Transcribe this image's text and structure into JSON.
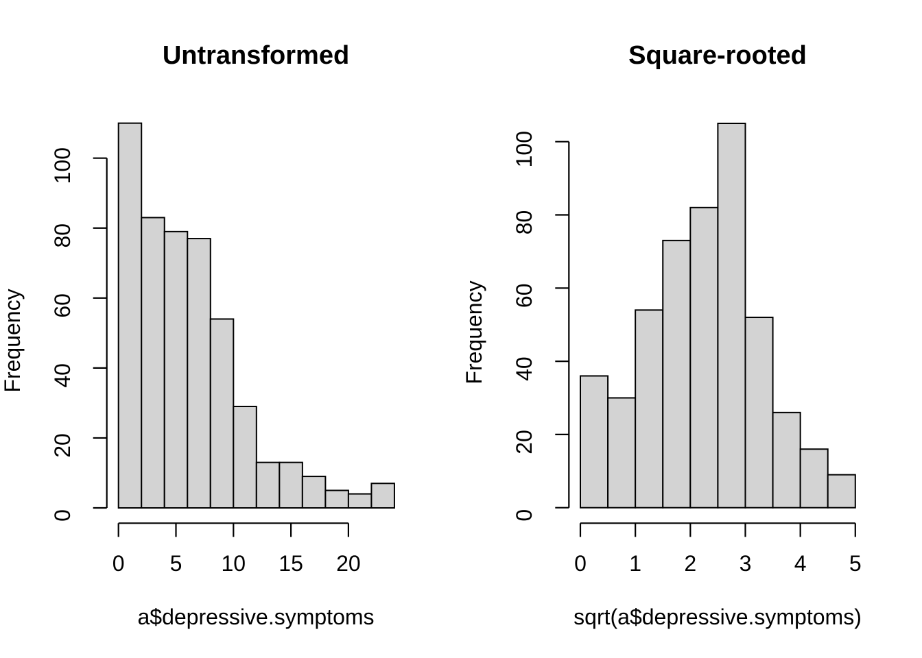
{
  "figure": {
    "background": "#ffffff",
    "bar_fill": "#d3d3d3",
    "bar_stroke": "#000000",
    "axis_color": "#000000"
  },
  "chart_data": [
    {
      "type": "bar",
      "subtype": "histogram",
      "title": "Untransformed",
      "xlabel": "a$depressive.symptoms",
      "ylabel": "Frequency",
      "bin_start": 0,
      "bin_width": 2,
      "categories": [
        "0-2",
        "2-4",
        "4-6",
        "6-8",
        "8-10",
        "10-12",
        "12-14",
        "14-16",
        "16-18",
        "18-20",
        "20-22",
        "22-24"
      ],
      "values": [
        110,
        83,
        79,
        77,
        54,
        29,
        13,
        13,
        9,
        5,
        4,
        7
      ],
      "x_ticks": [
        0,
        5,
        10,
        15,
        20
      ],
      "y_ticks": [
        0,
        20,
        40,
        60,
        80,
        100
      ],
      "xlim": [
        0,
        24
      ],
      "ylim": [
        0,
        110
      ],
      "grid": false,
      "legend": false
    },
    {
      "type": "bar",
      "subtype": "histogram",
      "title": "Square-rooted",
      "xlabel": "sqrt(a$depressive.symptoms)",
      "ylabel": "Frequency",
      "bin_start": 0,
      "bin_width": 0.5,
      "categories": [
        "0-0.5",
        "0.5-1",
        "1-1.5",
        "1.5-2",
        "2-2.5",
        "2.5-3",
        "3-3.5",
        "3.5-4",
        "4-4.5",
        "4.5-5"
      ],
      "values": [
        36,
        30,
        54,
        73,
        82,
        105,
        52,
        26,
        16,
        9
      ],
      "x_ticks": [
        0,
        1,
        2,
        3,
        4,
        5
      ],
      "y_ticks": [
        0,
        20,
        40,
        60,
        80,
        100
      ],
      "xlim": [
        0,
        5
      ],
      "ylim": [
        0,
        105
      ],
      "grid": false,
      "legend": false
    }
  ]
}
